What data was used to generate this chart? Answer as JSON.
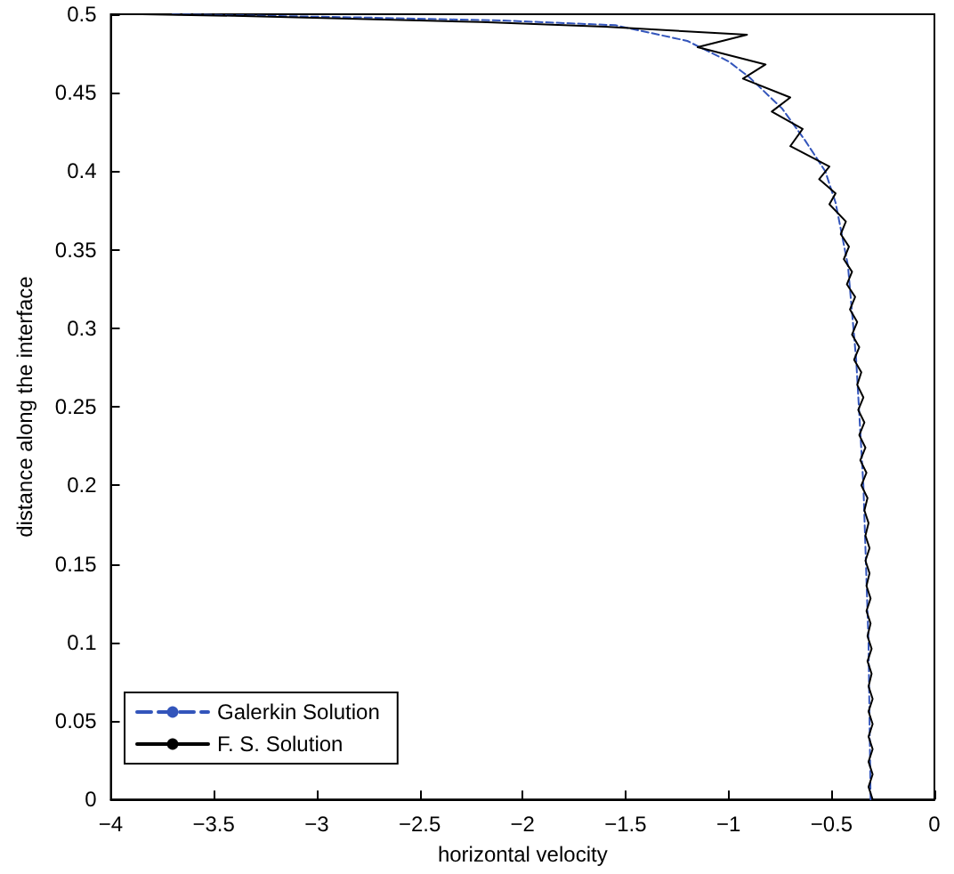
{
  "chart_data": {
    "type": "line",
    "xlabel": "horizontal velocity",
    "ylabel": "distance along the interface",
    "xlim": [
      -4,
      0
    ],
    "xticks": [
      -4,
      -3.5,
      -3,
      -2.5,
      -2,
      -1.5,
      -1,
      -0.5,
      0
    ],
    "ylim": [
      0,
      0.5
    ],
    "yticks": [
      0,
      0.05,
      0.1,
      0.15,
      0.2,
      0.25,
      0.3,
      0.35,
      0.4,
      0.45,
      0.5
    ],
    "grid": false,
    "legend": "bottom left",
    "marker": "none",
    "series": [
      {
        "name": "Galerkin Solution",
        "color": "#3355bb",
        "line_style": "dashed",
        "x": [
          -0.31,
          -0.32,
          -0.345,
          -0.38,
          -0.42,
          -0.48,
          -0.53,
          -0.63,
          -0.74,
          -0.9,
          -1.0,
          -1.2,
          -1.55,
          -2.1,
          -2.8,
          -3.7
        ],
        "values": [
          0,
          0.1,
          0.2,
          0.28,
          0.34,
          0.38,
          0.4,
          0.42,
          0.44,
          0.46,
          0.47,
          0.483,
          0.493,
          0.496,
          0.498,
          0.5
        ]
      },
      {
        "name": "F. S. Solution",
        "color": "#000000",
        "line_style": "solid",
        "x": [
          -0.3,
          -0.32,
          -0.3,
          -0.32,
          -0.3,
          -0.32,
          -0.3,
          -0.32,
          -0.3,
          -0.32,
          -0.305,
          -0.325,
          -0.305,
          -0.325,
          -0.31,
          -0.33,
          -0.31,
          -0.33,
          -0.315,
          -0.335,
          -0.315,
          -0.335,
          -0.32,
          -0.34,
          -0.325,
          -0.355,
          -0.33,
          -0.36,
          -0.335,
          -0.365,
          -0.34,
          -0.37,
          -0.345,
          -0.375,
          -0.355,
          -0.39,
          -0.365,
          -0.4,
          -0.375,
          -0.41,
          -0.385,
          -0.425,
          -0.4,
          -0.44,
          -0.415,
          -0.455,
          -0.43,
          -0.51,
          -0.48,
          -0.56,
          -0.51,
          -0.7,
          -0.64,
          -0.79,
          -0.7,
          -0.93,
          -0.82,
          -1.15,
          -0.91,
          -1.6,
          -2.2,
          -2.8,
          -3.4,
          -3.85
        ],
        "values": [
          0,
          0.008,
          0.016,
          0.024,
          0.032,
          0.04,
          0.048,
          0.056,
          0.064,
          0.072,
          0.08,
          0.088,
          0.096,
          0.104,
          0.112,
          0.12,
          0.128,
          0.136,
          0.144,
          0.152,
          0.16,
          0.168,
          0.176,
          0.184,
          0.192,
          0.2,
          0.208,
          0.216,
          0.224,
          0.232,
          0.24,
          0.248,
          0.256,
          0.264,
          0.272,
          0.28,
          0.288,
          0.296,
          0.304,
          0.312,
          0.32,
          0.328,
          0.336,
          0.344,
          0.352,
          0.36,
          0.368,
          0.379,
          0.386,
          0.395,
          0.403,
          0.416,
          0.427,
          0.438,
          0.447,
          0.459,
          0.468,
          0.479,
          0.487,
          0.492,
          0.495,
          0.497,
          0.499,
          0.5
        ]
      }
    ]
  }
}
